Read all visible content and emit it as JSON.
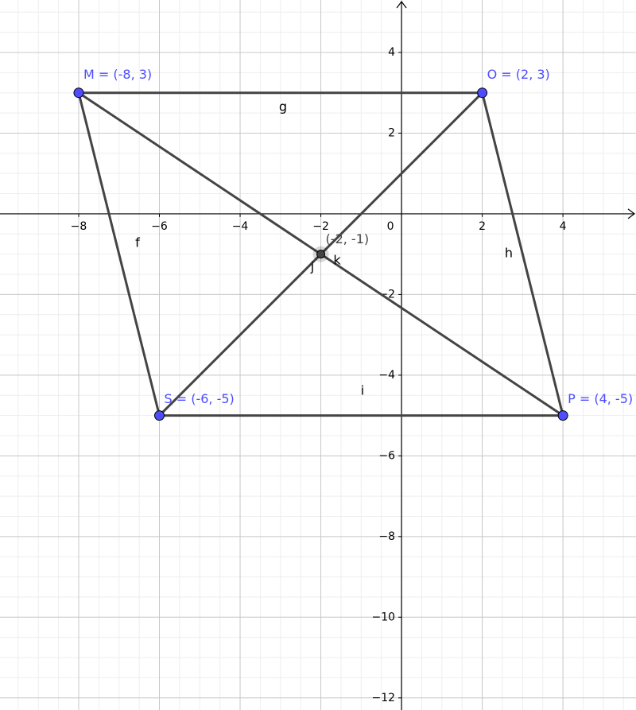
{
  "chart_data": {
    "type": "geometry",
    "xlim": [
      -9.95,
      5.81
    ],
    "ylim": [
      -12.3,
      5.3
    ],
    "xticks": [
      {
        "value": -8,
        "label": "−8"
      },
      {
        "value": -6,
        "label": "−6"
      },
      {
        "value": -4,
        "label": "−4"
      },
      {
        "value": -2,
        "label": "−2"
      },
      0,
      2,
      4
    ],
    "yticks": [
      {
        "value": -12,
        "label": "−12"
      },
      {
        "value": -10,
        "label": "−10"
      },
      {
        "value": -8,
        "label": "−8"
      },
      {
        "value": -6,
        "label": "−6"
      },
      {
        "value": -4,
        "label": "−4"
      },
      {
        "value": -2,
        "label": "−2"
      },
      2,
      4
    ],
    "grid": true,
    "points": [
      {
        "label": "M = (-8, 3)",
        "x": -8,
        "y": 3,
        "color": "#4d4dff"
      },
      {
        "label": "O = (2, 3)",
        "x": 2,
        "y": 3,
        "color": "#4d4dff"
      },
      {
        "label": "P = (4, -5)",
        "x": 4,
        "y": -5,
        "color": "#4d4dff"
      },
      {
        "label": "S = (-6, -5)",
        "x": -6,
        "y": -5,
        "color": "#4d4dff"
      }
    ],
    "intersection": {
      "label": "(-2, -1)",
      "x": -2,
      "y": -1,
      "color": "#444444"
    },
    "segments": [
      {
        "name": "f"
      },
      {
        "name": "g"
      },
      {
        "name": "h"
      },
      {
        "name": "i"
      },
      {
        "name": "j"
      },
      {
        "name": "k"
      }
    ]
  }
}
